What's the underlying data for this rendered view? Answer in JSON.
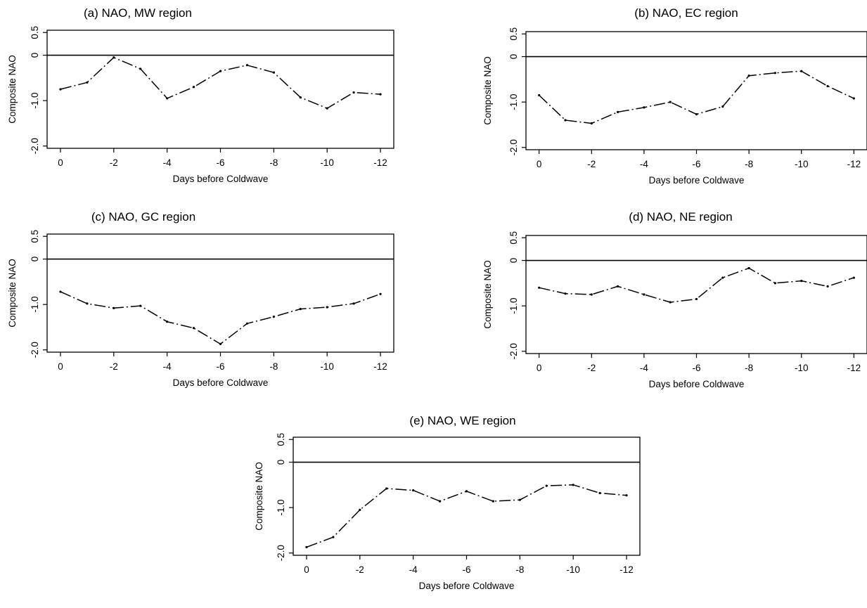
{
  "chart_data": [
    {
      "type": "line",
      "title": "(a) NAO, MW region",
      "xlabel": "Days before Coldwave",
      "ylabel": "Composite NAO",
      "x": [
        0,
        -1,
        -2,
        -3,
        -4,
        -5,
        -6,
        -7,
        -8,
        -9,
        -10,
        -11,
        -12
      ],
      "values": [
        -0.75,
        -0.6,
        -0.05,
        -0.3,
        -0.95,
        -0.7,
        -0.35,
        -0.22,
        -0.38,
        -0.93,
        -1.17,
        -0.82,
        -0.86
      ],
      "xlim": [
        0.5,
        -12.5
      ],
      "ylim": [
        -2.05,
        0.55
      ],
      "xticks": [
        "0",
        "-2",
        "-4",
        "-6",
        "-8",
        "-10",
        "-12"
      ],
      "yticks": [
        "0.5",
        "0",
        "-1.0",
        "-2.0"
      ],
      "reference_line": 0,
      "grid": false,
      "legend": "none"
    },
    {
      "type": "line",
      "title": "(b) NAO, EC region",
      "xlabel": "Days before Coldwave",
      "ylabel": "Composite NAO",
      "x": [
        0,
        -1,
        -2,
        -3,
        -4,
        -5,
        -6,
        -7,
        -8,
        -9,
        -10,
        -11,
        -12
      ],
      "values": [
        -0.85,
        -1.4,
        -1.47,
        -1.22,
        -1.12,
        -1.0,
        -1.27,
        -1.1,
        -0.42,
        -0.36,
        -0.32,
        -0.65,
        -0.92
      ],
      "xlim": [
        0.5,
        -12.5
      ],
      "ylim": [
        -2.05,
        0.55
      ],
      "xticks": [
        "0",
        "-2",
        "-4",
        "-6",
        "-8",
        "-10",
        "-12"
      ],
      "yticks": [
        "0.5",
        "0",
        "-1.0",
        "-2.0"
      ],
      "reference_line": 0,
      "grid": false,
      "legend": "none"
    },
    {
      "type": "line",
      "title": "(c) NAO, GC region",
      "xlabel": "Days before Coldwave",
      "ylabel": "Composite NAO",
      "x": [
        0,
        -1,
        -2,
        -3,
        -4,
        -5,
        -6,
        -7,
        -8,
        -9,
        -10,
        -11,
        -12
      ],
      "values": [
        -0.72,
        -0.98,
        -1.08,
        -1.03,
        -1.38,
        -1.52,
        -1.87,
        -1.42,
        -1.27,
        -1.1,
        -1.06,
        -0.98,
        -0.77
      ],
      "xlim": [
        0.5,
        -12.5
      ],
      "ylim": [
        -2.05,
        0.55
      ],
      "xticks": [
        "0",
        "-2",
        "-4",
        "-6",
        "-8",
        "-10",
        "-12"
      ],
      "yticks": [
        "0.5",
        "0",
        "-1.0",
        "-2.0"
      ],
      "reference_line": 0,
      "grid": false,
      "legend": "none"
    },
    {
      "type": "line",
      "title": "(d) NAO, NE region",
      "xlabel": "Days before Coldwave",
      "ylabel": "Composite NAO",
      "x": [
        0,
        -1,
        -2,
        -3,
        -4,
        -5,
        -6,
        -7,
        -8,
        -9,
        -10,
        -11,
        -12
      ],
      "values": [
        -0.6,
        -0.73,
        -0.75,
        -0.57,
        -0.75,
        -0.92,
        -0.85,
        -0.38,
        -0.17,
        -0.5,
        -0.45,
        -0.57,
        -0.38
      ],
      "xlim": [
        0.5,
        -12.5
      ],
      "ylim": [
        -2.05,
        0.55
      ],
      "xticks": [
        "0",
        "-2",
        "-4",
        "-6",
        "-8",
        "-10",
        "-12"
      ],
      "yticks": [
        "0.5",
        "0",
        "-1.0",
        "-2.0"
      ],
      "reference_line": 0,
      "grid": false,
      "legend": "none"
    },
    {
      "type": "line",
      "title": "(e) NAO, WE region",
      "xlabel": "Days before Coldwave",
      "ylabel": "Composite NAO",
      "x": [
        0,
        -1,
        -2,
        -3,
        -4,
        -5,
        -6,
        -7,
        -8,
        -9,
        -10,
        -11,
        -12
      ],
      "values": [
        -1.87,
        -1.65,
        -1.05,
        -0.58,
        -0.62,
        -0.86,
        -0.64,
        -0.86,
        -0.83,
        -0.52,
        -0.5,
        -0.68,
        -0.73
      ],
      "xlim": [
        0.5,
        -12.5
      ],
      "ylim": [
        -2.05,
        0.55
      ],
      "xticks": [
        "0",
        "-2",
        "-4",
        "-6",
        "-8",
        "-10",
        "-12"
      ],
      "yticks": [
        "0.5",
        "0",
        "-1.0",
        "-2.0"
      ],
      "reference_line": 0,
      "grid": false,
      "legend": "none"
    }
  ]
}
